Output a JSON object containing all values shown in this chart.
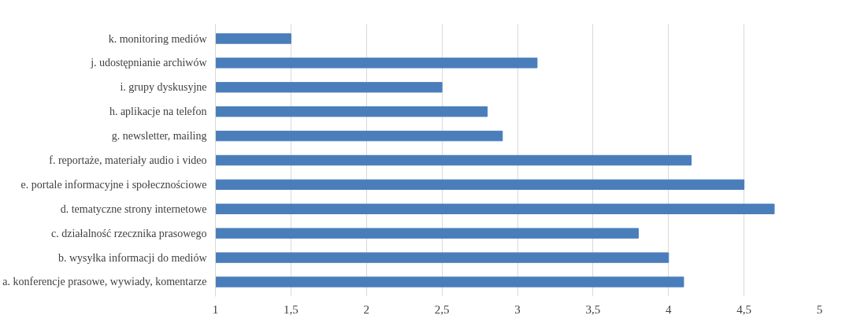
{
  "chart_data": {
    "type": "bar",
    "orientation": "horizontal",
    "color": "#4a7ebb",
    "categories": [
      "k. monitoring mediów",
      "j. udostępnianie archiwów",
      "i. grupy dyskusyjne",
      "h. aplikacje na telefon",
      "g. newsletter, mailing",
      "f. reportaże, materiały audio i video",
      "e. portale informacyjne i społecznościowe",
      "d. tematyczne strony internetowe",
      "c. działalność rzecznika prasowego",
      "b. wysyłka informacji do mediów",
      "a. konferencje prasowe, wywiady, komentarze"
    ],
    "values": [
      1.5,
      3.13,
      2.5,
      2.8,
      2.9,
      4.15,
      4.5,
      4.7,
      3.8,
      4.0,
      4.1
    ],
    "xlim": [
      1,
      5
    ],
    "xticks": [
      1,
      {
        "value": 1.5,
        "label": "1,5"
      },
      2,
      {
        "value": 2.5,
        "label": "2,5"
      },
      3,
      {
        "value": 3.5,
        "label": "3,5"
      },
      4,
      {
        "value": 4.5,
        "label": "4,5"
      },
      5
    ],
    "grid": "x"
  }
}
